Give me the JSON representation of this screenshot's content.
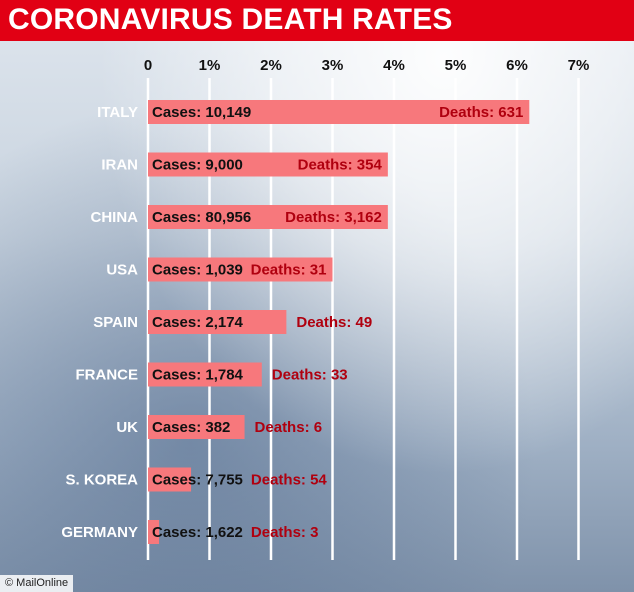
{
  "title": "CORONAVIRUS DEATH RATES",
  "source_badge": "© MailOnline",
  "colors": {
    "title_bar": "#e10014",
    "bar": "#f7787c",
    "deaths_text": "#b0000f",
    "gridline": "#ffffff"
  },
  "chart_data": {
    "type": "bar",
    "orientation": "horizontal",
    "title": "CORONAVIRUS DEATH RATES",
    "xlim": [
      0,
      7
    ],
    "x_ticks": [
      "0",
      "1%",
      "2%",
      "3%",
      "4%",
      "5%",
      "6%",
      "7%"
    ],
    "grid": true,
    "categories": [
      "ITALY",
      "IRAN",
      "CHINA",
      "USA",
      "SPAIN",
      "FRANCE",
      "UK",
      "S. KOREA",
      "GERMANY"
    ],
    "values": [
      6.2,
      3.9,
      3.9,
      3.0,
      2.25,
      1.85,
      1.57,
      0.7,
      0.18
    ],
    "cases_labels": [
      "Cases: 10,149",
      "Cases: 9,000",
      "Cases: 80,956",
      "Cases: 1,039",
      "Cases: 2,174",
      "Cases: 1,784",
      "Cases: 382",
      "Cases: 7,755",
      "Cases: 1,622"
    ],
    "deaths_labels": [
      "Deaths: 631",
      "Deaths: 354",
      "Deaths: 3,162",
      "Deaths: 31",
      "Deaths: 49",
      "Deaths: 33",
      "Deaths: 6",
      "Deaths: 54",
      "Deaths: 3"
    ]
  }
}
